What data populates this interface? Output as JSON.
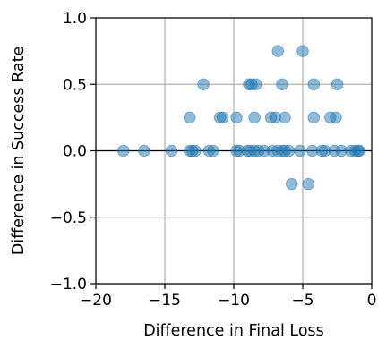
{
  "chart_data": {
    "type": "scatter",
    "title": "",
    "xlabel": "Difference in Final Loss",
    "ylabel": "Difference in Success Rate",
    "xlim": [
      -20,
      0
    ],
    "ylim": [
      -1.0,
      1.0
    ],
    "xticks": [
      -20,
      -15,
      -10,
      -5,
      0
    ],
    "yticks": [
      -1.0,
      -0.5,
      0.0,
      0.5,
      1.0
    ],
    "xtick_labels": [
      "−20",
      "−15",
      "−10",
      "−5",
      "0"
    ],
    "ytick_labels": [
      "−1.0",
      "−0.5",
      "0.0",
      "0.5",
      "1.0"
    ],
    "grid": true,
    "zero_line": true,
    "point_color": "#1f77b4",
    "points": [
      {
        "x": -18.0,
        "y": 0.0
      },
      {
        "x": -16.5,
        "y": 0.0
      },
      {
        "x": -14.5,
        "y": 0.0
      },
      {
        "x": -13.2,
        "y": 0.0
      },
      {
        "x": -13.0,
        "y": 0.0
      },
      {
        "x": -12.8,
        "y": 0.0
      },
      {
        "x": -11.8,
        "y": 0.0
      },
      {
        "x": -11.5,
        "y": 0.0
      },
      {
        "x": -9.8,
        "y": 0.0
      },
      {
        "x": -9.6,
        "y": 0.0
      },
      {
        "x": -9.0,
        "y": 0.0
      },
      {
        "x": -8.8,
        "y": 0.0
      },
      {
        "x": -8.5,
        "y": 0.0
      },
      {
        "x": -8.2,
        "y": 0.0
      },
      {
        "x": -7.8,
        "y": 0.0
      },
      {
        "x": -7.2,
        "y": 0.0
      },
      {
        "x": -6.8,
        "y": 0.0
      },
      {
        "x": -6.5,
        "y": 0.0
      },
      {
        "x": -6.3,
        "y": 0.0
      },
      {
        "x": -6.0,
        "y": 0.0
      },
      {
        "x": -5.2,
        "y": 0.0
      },
      {
        "x": -4.3,
        "y": 0.0
      },
      {
        "x": -3.6,
        "y": 0.0
      },
      {
        "x": -3.4,
        "y": 0.0
      },
      {
        "x": -2.7,
        "y": 0.0
      },
      {
        "x": -2.2,
        "y": 0.0
      },
      {
        "x": -1.5,
        "y": 0.0
      },
      {
        "x": -1.2,
        "y": 0.0
      },
      {
        "x": -1.0,
        "y": 0.0
      },
      {
        "x": -0.9,
        "y": 0.0
      },
      {
        "x": -5.8,
        "y": -0.25
      },
      {
        "x": -4.6,
        "y": -0.25
      },
      {
        "x": -13.2,
        "y": 0.25
      },
      {
        "x": -11.0,
        "y": 0.25
      },
      {
        "x": -10.8,
        "y": 0.25
      },
      {
        "x": -9.8,
        "y": 0.25
      },
      {
        "x": -8.5,
        "y": 0.25
      },
      {
        "x": -7.3,
        "y": 0.25
      },
      {
        "x": -7.0,
        "y": 0.25
      },
      {
        "x": -6.3,
        "y": 0.25
      },
      {
        "x": -4.2,
        "y": 0.25
      },
      {
        "x": -3.0,
        "y": 0.25
      },
      {
        "x": -2.6,
        "y": 0.25
      },
      {
        "x": -12.2,
        "y": 0.5
      },
      {
        "x": -8.9,
        "y": 0.5
      },
      {
        "x": -8.7,
        "y": 0.5
      },
      {
        "x": -8.4,
        "y": 0.5
      },
      {
        "x": -6.5,
        "y": 0.5
      },
      {
        "x": -4.2,
        "y": 0.5
      },
      {
        "x": -2.5,
        "y": 0.5
      },
      {
        "x": -6.8,
        "y": 0.75
      },
      {
        "x": -5.0,
        "y": 0.75
      }
    ]
  }
}
